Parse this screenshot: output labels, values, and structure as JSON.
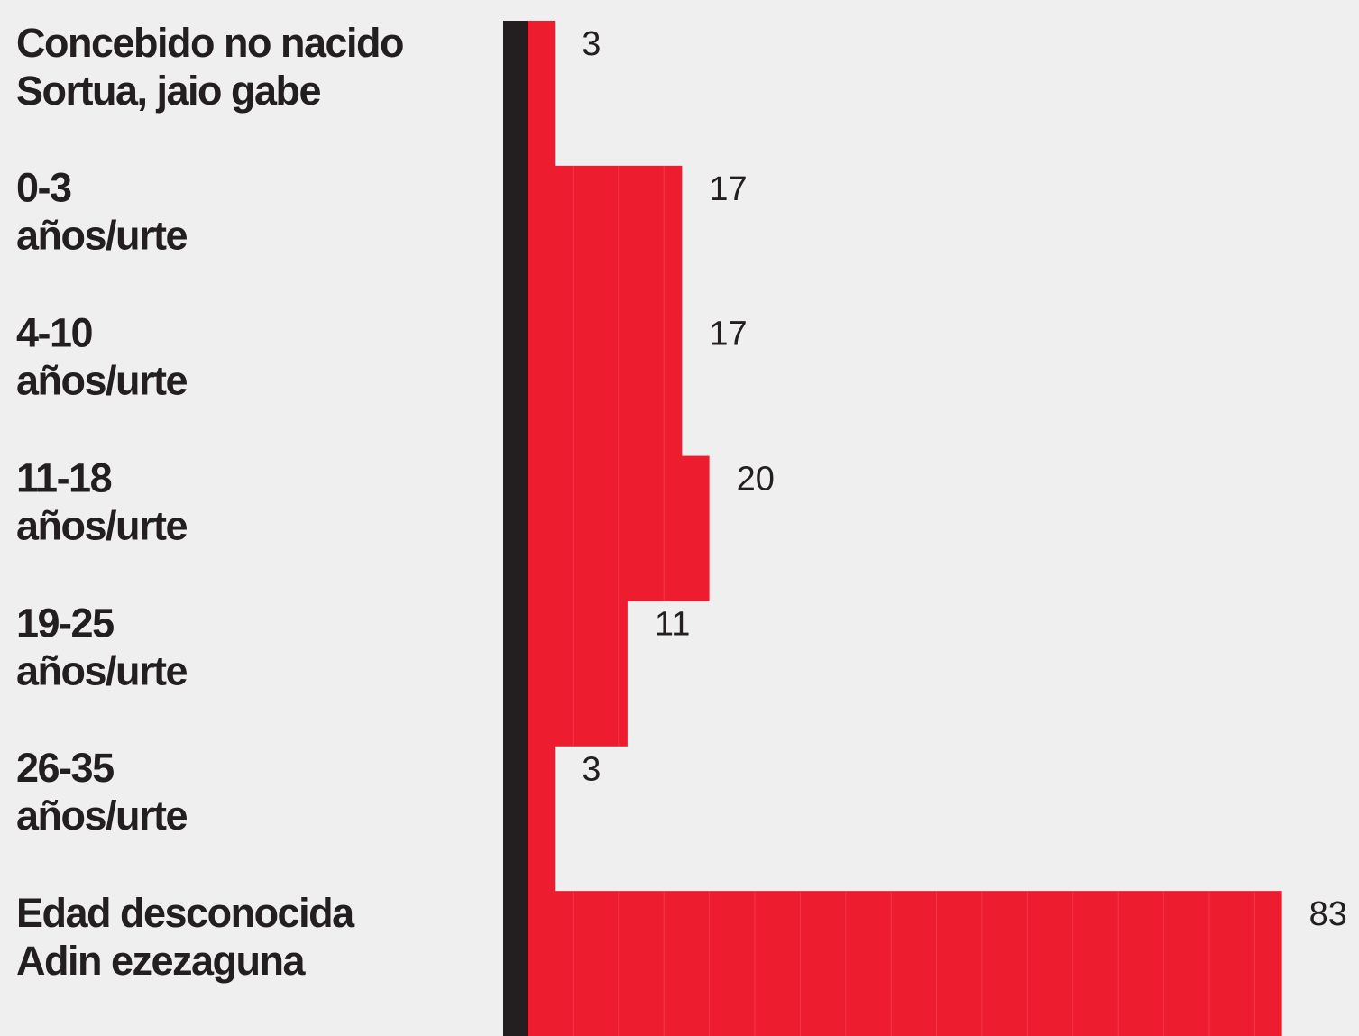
{
  "chart_data": {
    "type": "bar",
    "orientation": "horizontal",
    "categories": [
      [
        "Concebido no nacido",
        "Sortua, jaio gabe"
      ],
      [
        "0-3",
        "años/urte"
      ],
      [
        "4-10",
        "años/urte"
      ],
      [
        "11-18",
        "años/urte"
      ],
      [
        "19-25",
        "años/urte"
      ],
      [
        "26-35",
        "años/urte"
      ],
      [
        "Edad desconocida",
        "Adin ezezaguna"
      ]
    ],
    "values": [
      3,
      17,
      17,
      20,
      11,
      3,
      83
    ],
    "color": "#ed1c2e"
  }
}
